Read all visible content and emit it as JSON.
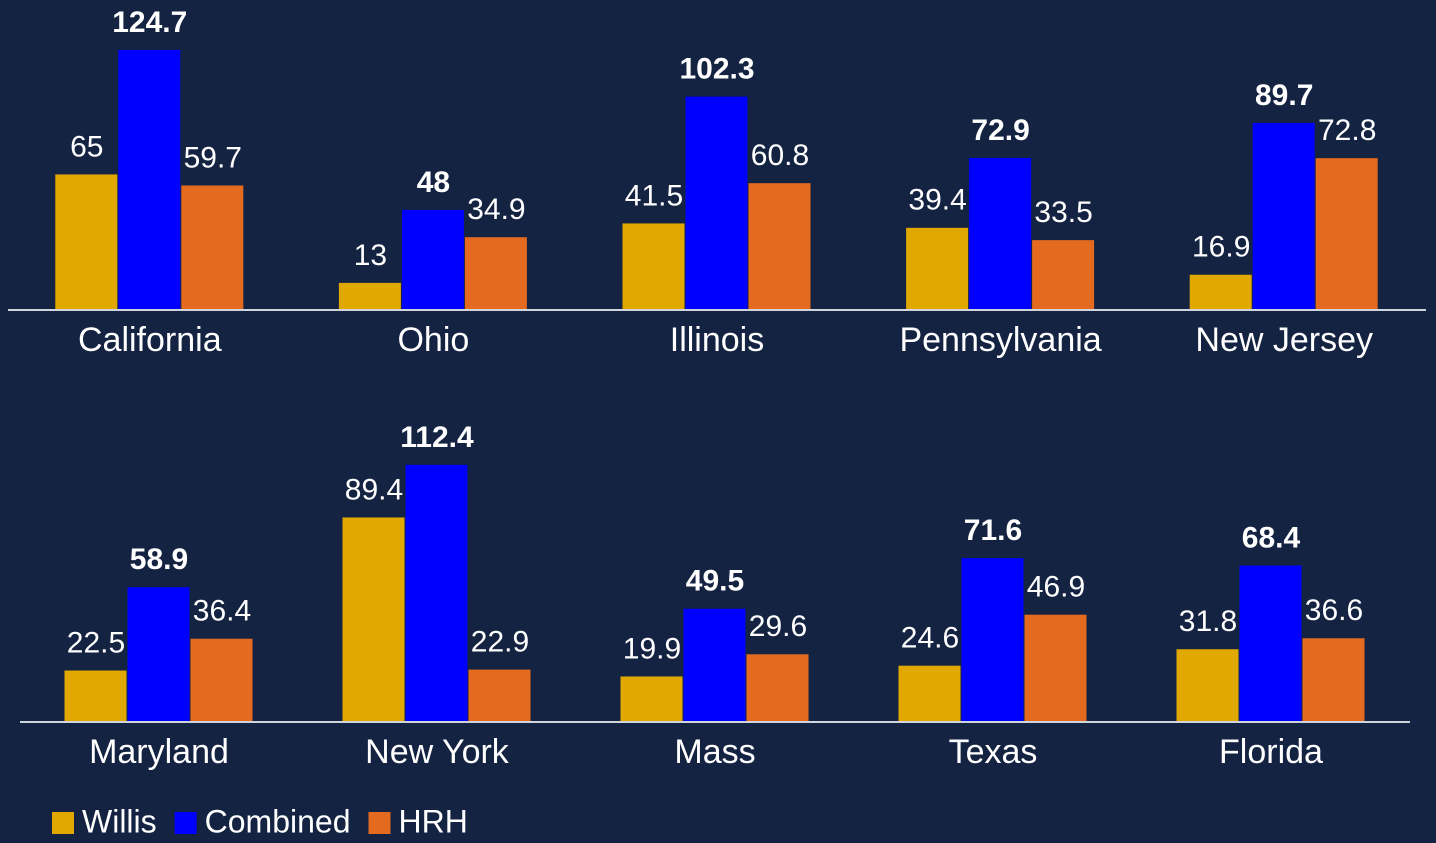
{
  "chart_data": [
    {
      "type": "bar",
      "categories": [
        "California",
        "Ohio",
        "Illinois",
        "Pennsylvania",
        "New Jersey"
      ],
      "series": [
        {
          "name": "Willis",
          "color": "#e0a800",
          "values": [
            65,
            13,
            41.5,
            39.4,
            16.9
          ]
        },
        {
          "name": "Combined",
          "color": "#0000ff",
          "values": [
            124.7,
            48,
            102.3,
            72.9,
            89.7
          ]
        },
        {
          "name": "HRH",
          "color": "#e36a1f",
          "values": [
            59.7,
            34.9,
            60.8,
            33.5,
            72.8
          ]
        }
      ],
      "ylim": [
        0,
        140
      ]
    },
    {
      "type": "bar",
      "categories": [
        "Maryland",
        "New York",
        "Mass",
        "Texas",
        "Florida"
      ],
      "series": [
        {
          "color": "#e0a800",
          "values": [
            22.5,
            89.4,
            19.9,
            24.6,
            31.8
          ]
        },
        {
          "color": "#0000ff",
          "values": [
            58.9,
            112.4,
            49.5,
            71.6,
            68.4
          ]
        },
        {
          "color": "#e36a1f",
          "values": [
            36.4,
            22.9,
            29.6,
            46.9,
            36.6
          ]
        }
      ],
      "ylim": [
        0,
        125
      ]
    }
  ]
}
